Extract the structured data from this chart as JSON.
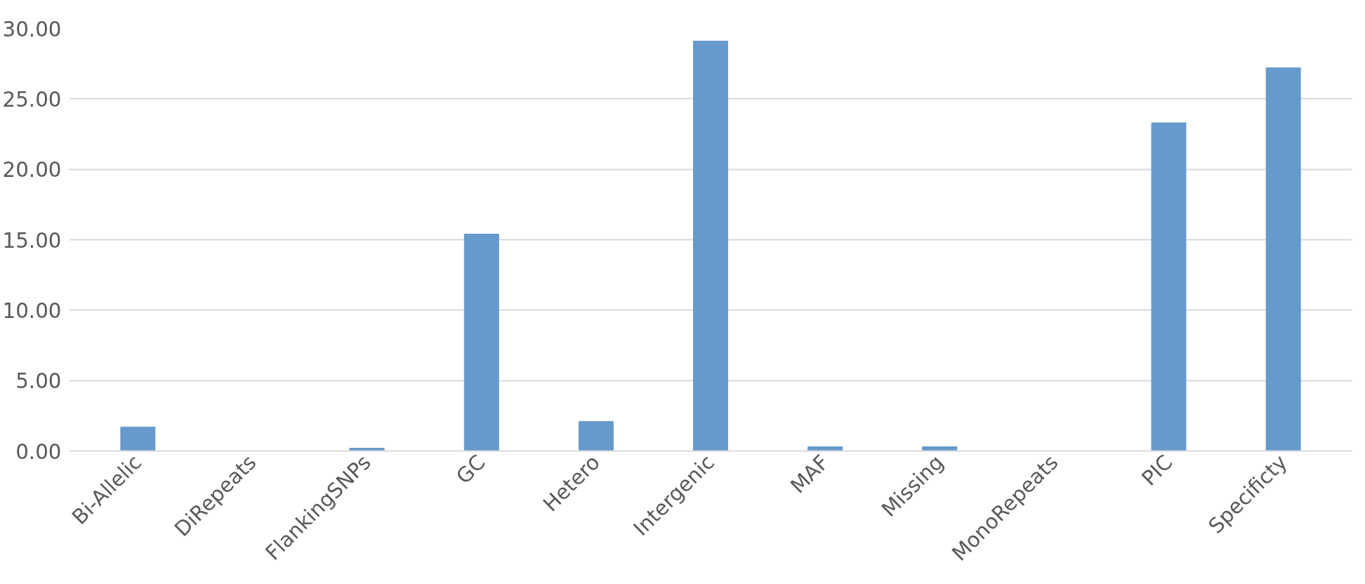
{
  "chart_data": {
    "type": "bar",
    "categories": [
      "Bi-Allelic",
      "DiRepeats",
      "FlankingSNPs",
      "GC",
      "Hetero",
      "Intergenic",
      "MAF",
      "Missing",
      "MonoRepeats",
      "PIC",
      "Specificty"
    ],
    "values": [
      1.7,
      0,
      0.2,
      15.4,
      2.1,
      29.1,
      0.3,
      0.3,
      0,
      23.3,
      27.2
    ],
    "color": "#6699cc",
    "ylim": [
      0,
      30
    ],
    "yticks": [
      {
        "value": 0,
        "label": "0.00"
      },
      {
        "value": 5,
        "label": "5.00"
      },
      {
        "value": 10,
        "label": "10.00"
      },
      {
        "value": 15,
        "label": "15.00"
      },
      {
        "value": 20,
        "label": "20.00"
      },
      {
        "value": 25,
        "label": "25.00"
      },
      {
        "value": 30,
        "label": "30.00"
      }
    ],
    "grid": "y"
  }
}
